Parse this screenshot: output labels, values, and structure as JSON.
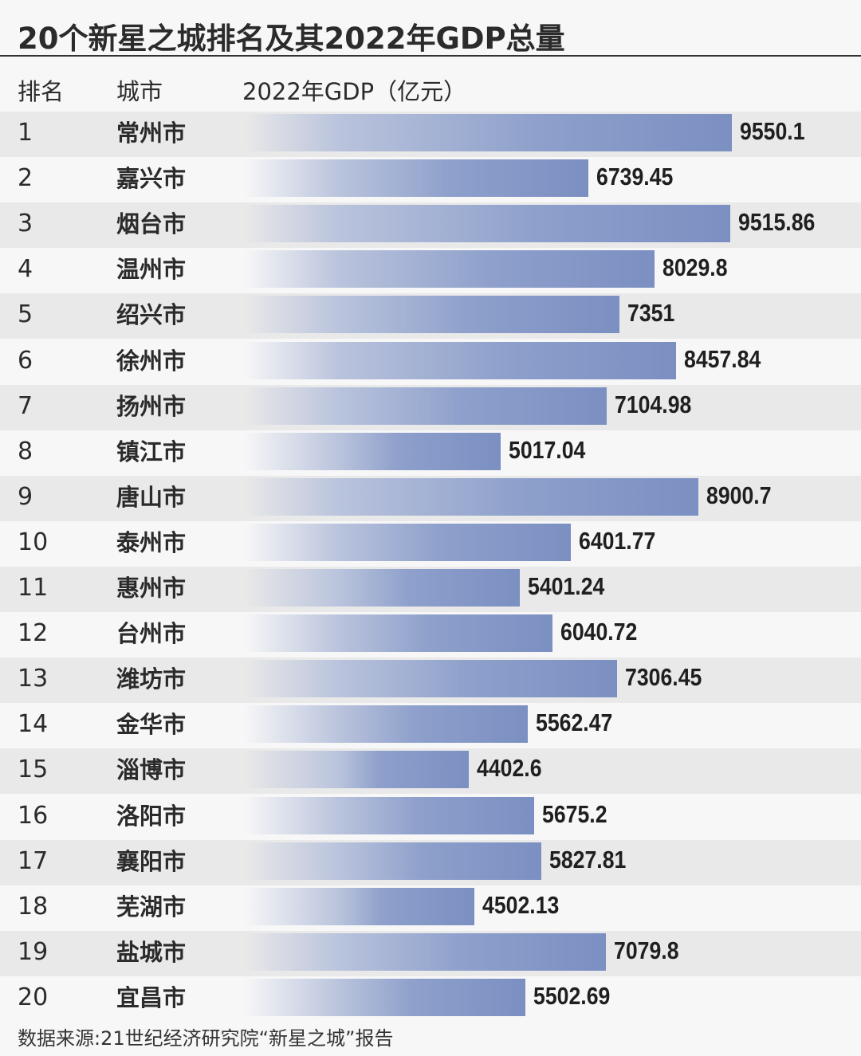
{
  "title": "20个新星之城排名及其2022年GDP总量",
  "header": {
    "rank": "排名",
    "city": "城市",
    "gdp": "2022年GDP（亿元）"
  },
  "source": "数据来源:21世纪经济研究院“新星之城”报告",
  "colors": {
    "bar": "#7b8fc2",
    "alt_row": "#e9e9e9",
    "background": "#f7f7f7"
  },
  "chart_data": {
    "type": "bar",
    "orientation": "horizontal",
    "title": "20个新星之城排名及其2022年GDP总量",
    "xlabel": "2022年GDP（亿元）",
    "ylabel": "城市",
    "xlim": [
      0,
      10400
    ],
    "grid": false,
    "categories": [
      "常州市",
      "嘉兴市",
      "烟台市",
      "温州市",
      "绍兴市",
      "徐州市",
      "扬州市",
      "镇江市",
      "唐山市",
      "泰州市",
      "惠州市",
      "台州市",
      "潍坊市",
      "金华市",
      "淄博市",
      "洛阳市",
      "襄阳市",
      "芜湖市",
      "盐城市",
      "宜昌市"
    ],
    "ranks": [
      "1",
      "2",
      "3",
      "4",
      "5",
      "6",
      "7",
      "8",
      "9",
      "10",
      "11",
      "12",
      "13",
      "14",
      "15",
      "16",
      "17",
      "18",
      "19",
      "20"
    ],
    "values": [
      9550.1,
      6739.45,
      9515.86,
      8029.8,
      7351,
      8457.84,
      7104.98,
      5017.04,
      8900.7,
      6401.77,
      5401.24,
      6040.72,
      7306.45,
      5562.47,
      4402.6,
      5675.2,
      5827.81,
      4502.13,
      7079.8,
      5502.69
    ],
    "labels": [
      "9550.1",
      "6739.45",
      "9515.86",
      "8029.8",
      "7351",
      "8457.84",
      "7104.98",
      "5017.04",
      "8900.7",
      "6401.77",
      "5401.24",
      "6040.72",
      "7306.45",
      "5562.47",
      "4402.6",
      "5675.2",
      "5827.81",
      "4502.13",
      "7079.8",
      "5502.69"
    ]
  }
}
